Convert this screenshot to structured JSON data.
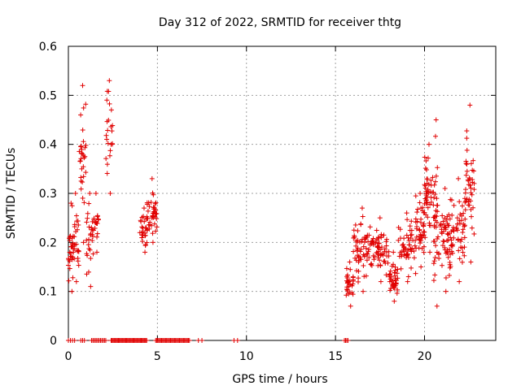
{
  "chart_data": {
    "type": "scatter",
    "title": "Day 312 of 2022, SRMTID for receiver thtg",
    "xlabel": "GPS time / hours",
    "ylabel": "SRMTID / TECUs",
    "xlim": [
      0,
      24
    ],
    "ylim": [
      0,
      0.6
    ],
    "xticks": [
      "0",
      "5",
      "10",
      "15",
      "20"
    ],
    "xtick_values": [
      0,
      5,
      10,
      15,
      20
    ],
    "yticks": [
      "0",
      "0.1",
      "0.2",
      "0.3",
      "0.4",
      "0.5",
      "0.6"
    ],
    "ytick_values": [
      0,
      0.1,
      0.2,
      0.3,
      0.4,
      0.5,
      0.6
    ],
    "grid": true,
    "marker": "+",
    "color": "#e00000",
    "series": [
      {
        "name": "SRMTID",
        "clusters": [
          {
            "x_range": [
              0.0,
              0.3
            ],
            "y_range": [
              0.1,
              0.28
            ],
            "count": 25
          },
          {
            "x_range": [
              0.2,
              0.6
            ],
            "y_range": [
              0.12,
              0.3
            ],
            "count": 25
          },
          {
            "x_range": [
              0.6,
              1.0
            ],
            "y_range": [
              0.2,
              0.52
            ],
            "count": 30
          },
          {
            "x_range": [
              1.0,
              1.4
            ],
            "y_range": [
              0.11,
              0.3
            ],
            "count": 25
          },
          {
            "x_range": [
              1.4,
              1.7
            ],
            "y_range": [
              0.18,
              0.3
            ],
            "count": 15
          },
          {
            "x_range": [
              2.1,
              2.5
            ],
            "y_range": [
              0.3,
              0.53
            ],
            "count": 22
          },
          {
            "x_range": [
              4.0,
              4.5
            ],
            "y_range": [
              0.18,
              0.27
            ],
            "count": 25
          },
          {
            "x_range": [
              4.4,
              5.0
            ],
            "y_range": [
              0.2,
              0.33
            ],
            "count": 40
          },
          {
            "x_range": [
              15.6,
              16.0
            ],
            "y_range": [
              0.07,
              0.16
            ],
            "count": 30
          },
          {
            "x_range": [
              16.0,
              17.0
            ],
            "y_range": [
              0.1,
              0.27
            ],
            "count": 60
          },
          {
            "x_range": [
              17.0,
              18.0
            ],
            "y_range": [
              0.12,
              0.25
            ],
            "count": 60
          },
          {
            "x_range": [
              18.0,
              18.5
            ],
            "y_range": [
              0.08,
              0.18
            ],
            "count": 40
          },
          {
            "x_range": [
              18.5,
              19.5
            ],
            "y_range": [
              0.12,
              0.26
            ],
            "count": 55
          },
          {
            "x_range": [
              19.5,
              20.0
            ],
            "y_range": [
              0.15,
              0.3
            ],
            "count": 40
          },
          {
            "x_range": [
              20.0,
              20.5
            ],
            "y_range": [
              0.18,
              0.4
            ],
            "count": 45
          },
          {
            "x_range": [
              20.5,
              20.8
            ],
            "y_range": [
              0.07,
              0.45
            ],
            "count": 35
          },
          {
            "x_range": [
              20.8,
              21.5
            ],
            "y_range": [
              0.1,
              0.31
            ],
            "count": 50
          },
          {
            "x_range": [
              21.5,
              22.3
            ],
            "y_range": [
              0.12,
              0.33
            ],
            "count": 50
          },
          {
            "x_range": [
              22.3,
              22.8
            ],
            "y_range": [
              0.16,
              0.48
            ],
            "count": 40
          }
        ],
        "zero_segments": [
          {
            "x_range": [
              0.0,
              0.35
            ],
            "count": 4
          },
          {
            "x_range": [
              0.7,
              0.9
            ],
            "count": 3
          },
          {
            "x_range": [
              1.3,
              2.1
            ],
            "count": 12
          },
          {
            "x_range": [
              2.4,
              4.4
            ],
            "count": 40
          },
          {
            "x_range": [
              4.9,
              6.8
            ],
            "count": 35
          },
          {
            "x_range": [
              7.3,
              7.5
            ],
            "count": 2
          },
          {
            "x_range": [
              9.3,
              9.5
            ],
            "count": 2
          },
          {
            "x_range": [
              15.5,
              15.7
            ],
            "count": 4
          }
        ]
      }
    ]
  }
}
